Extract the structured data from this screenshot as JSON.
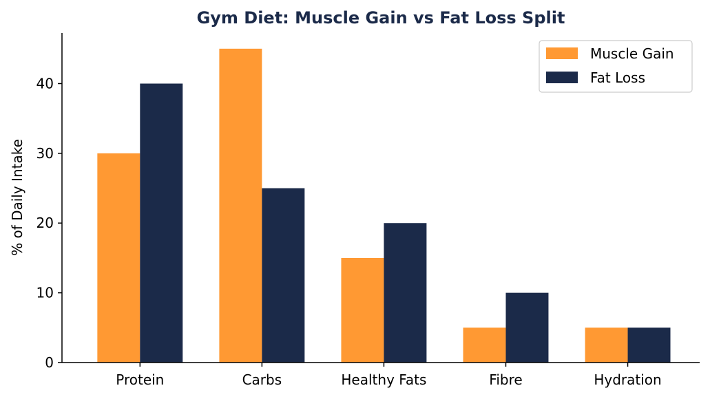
{
  "chart_data": {
    "type": "bar",
    "title": "Gym Diet: Muscle Gain vs Fat Loss Split",
    "xlabel": "",
    "ylabel": "% of Daily Intake",
    "categories": [
      "Protein",
      "Carbs",
      "Healthy Fats",
      "Fibre",
      "Hydration"
    ],
    "series": [
      {
        "name": "Muscle Gain",
        "values": [
          30,
          45,
          15,
          5,
          5
        ],
        "color": "#FF9933"
      },
      {
        "name": "Fat Loss",
        "values": [
          40,
          25,
          20,
          10,
          5
        ],
        "color": "#1B2A49"
      }
    ],
    "yticks": [
      0,
      10,
      20,
      30,
      40
    ],
    "ylim": [
      0,
      47.25
    ],
    "grid": false,
    "legend_position": "top-right",
    "title_color": "#1B2A49"
  }
}
